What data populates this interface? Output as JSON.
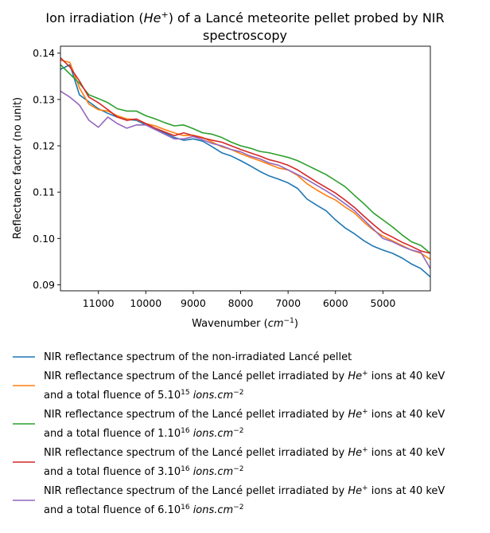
{
  "chart_data": {
    "type": "line",
    "title": {
      "line1_prefix": "Ion irradiation (",
      "line1_ion": "He",
      "line1_ion_sup": "+",
      "line1_suffix": ") of a Lancé meteorite pellet probed by NIR",
      "line2": "spectroscopy"
    },
    "xlabel": {
      "text": "Wavenumber (",
      "unit": "cm",
      "unit_sup": "−1",
      "close": ")"
    },
    "ylabel": "Reflectance factor (no unit)",
    "x_reversed": true,
    "xlim": [
      11800,
      4000
    ],
    "ylim": [
      0.0887,
      0.1415
    ],
    "x_ticks": [
      11000,
      10000,
      9000,
      8000,
      7000,
      6000,
      5000
    ],
    "y_ticks": [
      0.09,
      0.1,
      0.11,
      0.12,
      0.13,
      0.14
    ],
    "y_tick_labels": [
      "0.09",
      "0.10",
      "0.11",
      "0.12",
      "0.13",
      "0.14"
    ],
    "grid": false,
    "legend_placement": "below",
    "x": [
      11800,
      11600,
      11400,
      11200,
      11000,
      10800,
      10600,
      10400,
      10200,
      10000,
      9800,
      9600,
      9400,
      9200,
      9000,
      8800,
      8600,
      8400,
      8200,
      8000,
      7800,
      7600,
      7400,
      7200,
      7000,
      6800,
      6600,
      6400,
      6200,
      6000,
      5800,
      5600,
      5400,
      5200,
      5000,
      4800,
      4600,
      4400,
      4200,
      4000
    ],
    "series": [
      {
        "color": "#1f77b4",
        "label_lines": [
          {
            "text": "NIR reflectance spectrum of the non-irradiated Lancé pellet"
          }
        ],
        "values": [
          0.1365,
          0.1375,
          0.131,
          0.1295,
          0.128,
          0.127,
          0.1262,
          0.1257,
          0.1255,
          0.1245,
          0.1235,
          0.1228,
          0.1218,
          0.1212,
          0.1215,
          0.121,
          0.1198,
          0.1185,
          0.1178,
          0.1168,
          0.1157,
          0.1145,
          0.1135,
          0.1128,
          0.112,
          0.1108,
          0.1085,
          0.1072,
          0.106,
          0.104,
          0.1023,
          0.101,
          0.0995,
          0.0983,
          0.0975,
          0.0968,
          0.0958,
          0.0945,
          0.0935,
          0.0917
        ]
      },
      {
        "color": "#ff7f0e",
        "label_lines": [
          {
            "text": "NIR reflectance spectrum of the Lancé pellet irradiated by ",
            "ion": "He",
            "ion_sup": "+",
            "after": " ions at 40 keV"
          },
          {
            "text": "and a total fluence of 5.10",
            "sup": "15",
            "unit": " ions.cm",
            "unit_sup": "−2"
          }
        ],
        "values": [
          0.1385,
          0.138,
          0.1325,
          0.129,
          0.1278,
          0.1275,
          0.1265,
          0.1258,
          0.1257,
          0.1248,
          0.1243,
          0.1235,
          0.1228,
          0.1222,
          0.1223,
          0.1218,
          0.1208,
          0.1198,
          0.1192,
          0.1183,
          0.1175,
          0.1168,
          0.116,
          0.1152,
          0.1148,
          0.1136,
          0.1118,
          0.1105,
          0.1093,
          0.1083,
          0.1068,
          0.1055,
          0.1035,
          0.1018,
          0.1005,
          0.0995,
          0.0985,
          0.0975,
          0.0968,
          0.0955
        ]
      },
      {
        "color": "#2ca02c",
        "label_lines": [
          {
            "text": "NIR reflectance spectrum of the Lancé pellet irradiated by ",
            "ion": "He",
            "ion_sup": "+",
            "after": " ions at 40 keV"
          },
          {
            "text": "and a total fluence of 1.10",
            "sup": "16",
            "unit": " ions.cm",
            "unit_sup": "−2"
          }
        ],
        "values": [
          0.1375,
          0.1355,
          0.1335,
          0.131,
          0.1302,
          0.1293,
          0.128,
          0.1275,
          0.1275,
          0.1265,
          0.1258,
          0.125,
          0.1243,
          0.1245,
          0.1237,
          0.1228,
          0.1225,
          0.1218,
          0.1208,
          0.12,
          0.1195,
          0.1188,
          0.1185,
          0.118,
          0.1175,
          0.1168,
          0.1158,
          0.1148,
          0.1138,
          0.1125,
          0.1112,
          0.1093,
          0.1075,
          0.1055,
          0.104,
          0.1025,
          0.1008,
          0.0993,
          0.0985,
          0.0968
        ]
      },
      {
        "color": "#d62728",
        "label_lines": [
          {
            "text": "NIR reflectance spectrum of the Lancé pellet irradiated by ",
            "ion": "He",
            "ion_sup": "+",
            "after": " ions at 40 keV"
          },
          {
            "text": "and a total fluence of 3.10",
            "sup": "16",
            "unit": " ions.cm",
            "unit_sup": "−2"
          }
        ],
        "values": [
          0.139,
          0.137,
          0.134,
          0.1305,
          0.1293,
          0.1278,
          0.1262,
          0.1255,
          0.1258,
          0.1248,
          0.1238,
          0.123,
          0.1222,
          0.1228,
          0.1222,
          0.1217,
          0.1212,
          0.1208,
          0.12,
          0.1192,
          0.1185,
          0.1178,
          0.117,
          0.1165,
          0.1158,
          0.1148,
          0.1135,
          0.1122,
          0.111,
          0.1098,
          0.1083,
          0.1067,
          0.1048,
          0.103,
          0.1013,
          0.1003,
          0.0992,
          0.0983,
          0.0973,
          0.0968
        ]
      },
      {
        "color": "#9467bd",
        "label_lines": [
          {
            "text": "NIR reflectance spectrum of the Lancé pellet irradiated by ",
            "ion": "He",
            "ion_sup": "+",
            "after": " ions at 40 keV"
          },
          {
            "text": "and a total fluence of 6.10",
            "sup": "16",
            "unit": " ions.cm",
            "unit_sup": "−2"
          }
        ],
        "values": [
          0.1318,
          0.1305,
          0.1288,
          0.1255,
          0.124,
          0.1262,
          0.1248,
          0.1238,
          0.1245,
          0.1245,
          0.1235,
          0.1225,
          0.1215,
          0.1215,
          0.122,
          0.1213,
          0.1205,
          0.12,
          0.1192,
          0.1187,
          0.1178,
          0.1172,
          0.1163,
          0.1158,
          0.1148,
          0.1138,
          0.1127,
          0.1115,
          0.1103,
          0.109,
          0.1075,
          0.106,
          0.104,
          0.102,
          0.1,
          0.0993,
          0.0983,
          0.0975,
          0.097,
          0.0935
        ]
      }
    ]
  }
}
